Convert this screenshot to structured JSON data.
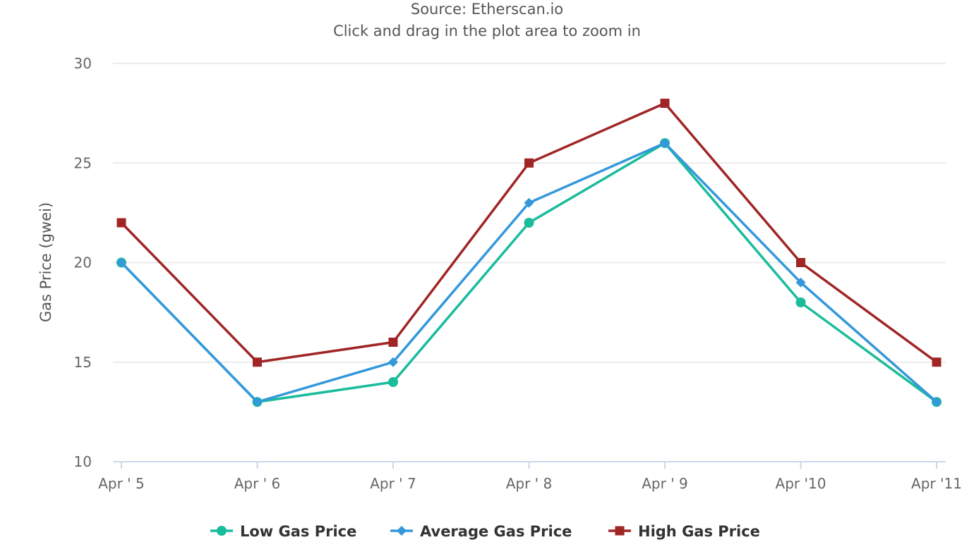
{
  "chart_data": {
    "type": "line",
    "subtitle_lines": [
      "Source: Etherscan.io",
      "Click and drag in the plot area to zoom in"
    ],
    "ylabel": "Gas Price (gwei)",
    "xlabel": "",
    "categories": [
      "Apr ' 5",
      "Apr ' 6",
      "Apr ' 7",
      "Apr ' 8",
      "Apr ' 9",
      "Apr '10",
      "Apr '11"
    ],
    "ylim": [
      10,
      30
    ],
    "yticks": [
      10,
      15,
      20,
      25,
      30
    ],
    "ytick_labels": [
      "10",
      "15",
      "20",
      "25",
      "30"
    ],
    "grid": true,
    "legend_position": "bottom",
    "series": [
      {
        "name": "Low Gas Price",
        "color": "#1abc9c",
        "marker": "circle",
        "values": [
          20,
          13,
          14,
          22,
          26,
          18,
          13
        ]
      },
      {
        "name": "Average Gas Price",
        "color": "#3498db",
        "marker": "diamond",
        "values": [
          20,
          13,
          15,
          23,
          26,
          19,
          13
        ]
      },
      {
        "name": "High Gas Price",
        "color": "#a02525",
        "marker": "square",
        "values": [
          22,
          15,
          16,
          25,
          28,
          20,
          15
        ]
      }
    ]
  }
}
